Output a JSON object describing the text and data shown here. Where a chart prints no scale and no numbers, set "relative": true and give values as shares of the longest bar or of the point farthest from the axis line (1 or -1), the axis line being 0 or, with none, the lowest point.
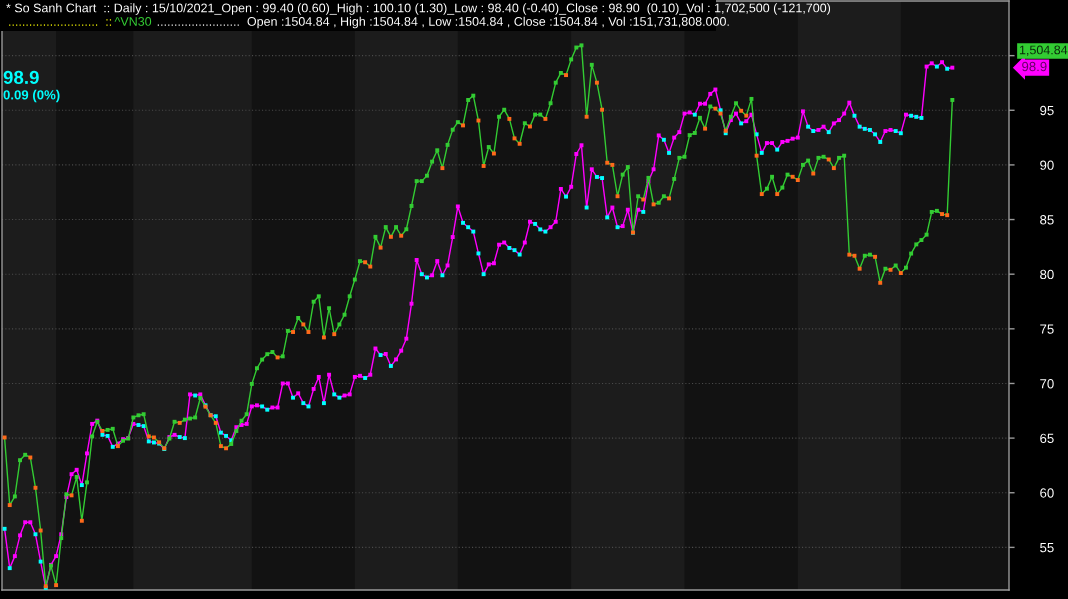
{
  "chart_data": [
    {
      "type": "line",
      "title": "* So Sanh Chart  :: Daily : 15/10/2021_Open : 99.40 (0.60)_High : 100.10 (1.30)_Low : 98.40 (-0.40)_Close : 98.90  (0.10)_Vol : 1,702,500 (-121,700)",
      "annotations": [
        "98.9",
        "0.09 (0%)",
        "98.9"
      ],
      "categories": [
        null,
        null,
        null,
        null,
        null,
        null,
        null,
        null,
        null,
        null,
        null,
        null,
        null,
        null,
        null,
        null,
        null,
        null,
        null,
        null,
        null,
        null,
        null,
        null,
        null,
        null,
        null,
        null,
        null,
        null,
        null,
        null,
        null,
        null,
        null,
        null,
        null,
        null,
        null,
        null,
        null,
        null,
        null,
        null,
        null,
        null,
        null,
        null,
        null,
        null,
        null,
        null,
        null,
        null,
        null,
        null,
        null,
        null,
        null,
        null,
        null,
        null,
        null,
        null,
        null,
        null,
        null,
        null,
        null,
        null,
        null,
        null,
        null,
        null,
        null,
        null,
        null,
        null,
        null,
        null,
        null,
        null,
        null,
        null,
        null,
        null,
        null,
        null,
        null,
        null,
        null,
        null,
        null,
        null,
        null,
        null,
        null,
        null,
        null,
        null,
        null,
        null,
        null,
        null,
        null,
        null,
        null,
        null,
        null,
        null,
        null,
        null,
        null,
        null,
        null,
        null,
        null,
        null,
        null,
        null,
        null,
        null,
        null,
        null,
        null,
        null,
        null,
        null,
        null,
        null,
        null,
        null,
        null,
        null,
        null,
        null,
        null,
        null,
        null,
        null,
        null,
        null,
        null,
        null,
        null,
        null,
        null,
        null,
        null,
        null,
        null,
        null,
        null,
        null,
        null,
        null,
        null,
        null,
        null,
        null,
        null,
        null,
        null,
        null,
        null,
        null,
        null,
        null,
        null,
        null,
        null,
        null,
        null,
        null,
        null,
        null,
        null,
        null,
        null,
        null,
        null,
        null,
        null,
        null,
        null
      ],
      "series": [
        {
          "color": "#ff00ff",
          "values": [
            56.7,
            53.1,
            54.2,
            56.1,
            57.3,
            57.3,
            56.2,
            53.7,
            51.3,
            53.4,
            54.2,
            56.2,
            59.6,
            61.7,
            62.1,
            60.7,
            63.6,
            66.3,
            66.6,
            65.3,
            65.2,
            64.2,
            64.5,
            64.9,
            65.0,
            66.3,
            66.2,
            66.1,
            64.7,
            64.6,
            64.5,
            64.0,
            65.1,
            65.3,
            65.1,
            65.0,
            69.0,
            68.9,
            69.0,
            68.0,
            67.1,
            67.0,
            65.5,
            65.2,
            64.8,
            66.0,
            66.2,
            66.3,
            67.9,
            68.0,
            67.9,
            67.6,
            67.8,
            67.8,
            70.0,
            70.0,
            68.7,
            69.1,
            68.2,
            67.9,
            69.5,
            70.6,
            68.2,
            70.8,
            69.0,
            68.7,
            68.9,
            69.0,
            70.6,
            70.7,
            70.5,
            70.8,
            73.2,
            72.6,
            72.7,
            71.6,
            72.2,
            73.0,
            74.1,
            77.3,
            81.3,
            80.0,
            79.7,
            79.9,
            81.2,
            79.9,
            80.8,
            83.4,
            86.2,
            84.7,
            84.3,
            83.9,
            81.9,
            80.0,
            80.9,
            81.0,
            82.7,
            82.9,
            82.4,
            82.2,
            81.8,
            82.9,
            84.8,
            84.6,
            84.1,
            83.9,
            84.3,
            84.8,
            87.8,
            87.1,
            88.0,
            91.0,
            91.8,
            86.1,
            89.6,
            88.9,
            88.8,
            85.2,
            86.1,
            84.3,
            84.4,
            85.9,
            83.8,
            85.9,
            85.7,
            88.5,
            89.6,
            92.7,
            92.3,
            91.1,
            92.5,
            93.0,
            94.7,
            94.8,
            94.6,
            95.6,
            95.6,
            96.5,
            96.9,
            95.0,
            92.9,
            94.1,
            94.7,
            93.8,
            94.0,
            94.6,
            92.8,
            91.1,
            92.0,
            92.0,
            91.4,
            92.1,
            92.2,
            92.4,
            92.5,
            94.9,
            93.5,
            93.1,
            93.2,
            93.5,
            93.0,
            93.8,
            94.1,
            94.7,
            95.7,
            94.5,
            93.5,
            93.3,
            93.2,
            92.8,
            92.1,
            93.1,
            93.2,
            93.1,
            92.9,
            94.6,
            94.5,
            94.4,
            94.3,
            99.0,
            99.3,
            99.0,
            99.4,
            98.8,
            98.9
          ],
          "colors": [
            "#00ffff",
            "#00ffff",
            "#ff00ff",
            "#ff00ff",
            "#ff00ff",
            "#ff00ff",
            "#00ffff",
            "#00ffff",
            "#00ffff",
            "#ff00ff",
            "#ff00ff",
            "#ff00ff",
            "#ff00ff",
            "#ff00ff",
            "#ff00ff",
            "#00ffff",
            "#ff00ff",
            "#ff00ff",
            "#ff00ff",
            "#00ffff",
            "#00ffff",
            "#00ffff",
            "#ff00ff",
            "#ff00ff",
            "#ff00ff",
            "#ff00ff",
            "#00ffff",
            "#00ffff",
            "#00ffff",
            "#00ffff",
            "#00ffff",
            "#00ffff",
            "#ff00ff",
            "#ff00ff",
            "#00ffff",
            "#00ffff",
            "#ff00ff",
            "#00ffff",
            "#ff00ff",
            "#00ffff",
            "#00ffff",
            "#00ffff",
            "#00ffff",
            "#00ffff",
            "#00ffff",
            "#ff00ff",
            "#ff00ff",
            "#ff00ff",
            "#ff00ff",
            "#ff00ff",
            "#00ffff",
            "#00ffff",
            "#ff00ff",
            "#ff00ff",
            "#ff00ff",
            "#ff00ff",
            "#00ffff",
            "#ff00ff",
            "#00ffff",
            "#00ffff",
            "#ff00ff",
            "#ff00ff",
            "#00ffff",
            "#ff00ff",
            "#00ffff",
            "#00ffff",
            "#ff00ff",
            "#ff00ff",
            "#ff00ff",
            "#ff00ff",
            "#00ffff",
            "#ff00ff",
            "#ff00ff",
            "#00ffff",
            "#ff00ff",
            "#00ffff",
            "#ff00ff",
            "#ff00ff",
            "#ff00ff",
            "#ff00ff",
            "#ff00ff",
            "#00ffff",
            "#00ffff",
            "#ff00ff",
            "#ff00ff",
            "#00ffff",
            "#ff00ff",
            "#ff00ff",
            "#ff00ff",
            "#00ffff",
            "#00ffff",
            "#00ffff",
            "#00ffff",
            "#00ffff",
            "#ff00ff",
            "#ff00ff",
            "#ff00ff",
            "#ff00ff",
            "#00ffff",
            "#00ffff",
            "#00ffff",
            "#ff00ff",
            "#ff00ff",
            "#00ffff",
            "#00ffff",
            "#00ffff",
            "#ff00ff",
            "#ff00ff",
            "#ff00ff",
            "#00ffff",
            "#ff00ff",
            "#ff00ff",
            "#ff00ff",
            "#00ffff",
            "#ff00ff",
            "#00ffff",
            "#00ffff",
            "#00ffff",
            "#ff00ff",
            "#00ffff",
            "#ff00ff",
            "#ff00ff",
            "#00ffff",
            "#ff00ff",
            "#00ffff",
            "#ff00ff",
            "#ff00ff",
            "#ff00ff",
            "#00ffff",
            "#00ffff",
            "#ff00ff",
            "#ff00ff",
            "#ff00ff",
            "#ff00ff",
            "#00ffff",
            "#ff00ff",
            "#ff00ff",
            "#ff00ff",
            "#ff00ff",
            "#00ffff",
            "#00ffff",
            "#ff00ff",
            "#ff00ff",
            "#00ffff",
            "#ff00ff",
            "#ff00ff",
            "#00ffff",
            "#00ffff",
            "#ff00ff",
            "#ff00ff",
            "#00ffff",
            "#ff00ff",
            "#ff00ff",
            "#ff00ff",
            "#ff00ff",
            "#ff00ff",
            "#00ffff",
            "#00ffff",
            "#ff00ff",
            "#ff00ff",
            "#00ffff",
            "#ff00ff",
            "#ff00ff",
            "#ff00ff",
            "#ff00ff",
            "#00ffff",
            "#00ffff",
            "#00ffff",
            "#00ffff",
            "#00ffff",
            "#00ffff",
            "#ff00ff",
            "#ff00ff",
            "#00ffff",
            "#00ffff",
            "#ff00ff",
            "#00ffff",
            "#00ffff",
            "#00ffff",
            "#ff00ff",
            "#ff00ff",
            "#00ffff",
            "#ff00ff",
            "#00ffff",
            "#ff00ff"
          ]
        }
      ],
      "ylim": [
        51.1,
        105.0
      ],
      "yticks": [
        55,
        60,
        65,
        70,
        75,
        80,
        85,
        90,
        95,
        {
          "value": 100,
          "label": null
        }
      ],
      "tick_labels": "y",
      "grid": "y",
      "marker": "square"
    },
    {
      "type": "line",
      "relative": true,
      "subtitle": "........................  Open :1504.84 , High :1504.84 , Low :1504.84 , Close :1504.84 , Vol :151,731,808.000.",
      "annotations": [
        "..........................  ::",
        "1,504.84"
      ],
      "categories": [
        null,
        null,
        null,
        null,
        null,
        null,
        null,
        null,
        null,
        null,
        null,
        null,
        null,
        null,
        null,
        null,
        null,
        null,
        null,
        null,
        null,
        null,
        null,
        null,
        null,
        null,
        null,
        null,
        null,
        null,
        null,
        null,
        null,
        null,
        null,
        null,
        null,
        null,
        null,
        null,
        null,
        null,
        null,
        null,
        null,
        null,
        null,
        null,
        null,
        null,
        null,
        null,
        null,
        null,
        null,
        null,
        null,
        null,
        null,
        null,
        null,
        null,
        null,
        null,
        null,
        null,
        null,
        null,
        null,
        null,
        null,
        null,
        null,
        null,
        null,
        null,
        null,
        null,
        null,
        null,
        null,
        null,
        null,
        null,
        null,
        null,
        null,
        null,
        null,
        null,
        null,
        null,
        null,
        null,
        null,
        null,
        null,
        null,
        null,
        null,
        null,
        null,
        null,
        null,
        null,
        null,
        null,
        null,
        null,
        null,
        null,
        null,
        null,
        null,
        null,
        null,
        null,
        null,
        null,
        null,
        null,
        null,
        null,
        null,
        null,
        null,
        null,
        null,
        null,
        null,
        null,
        null,
        null,
        null,
        null,
        null,
        null,
        null,
        null,
        null,
        null,
        null,
        null,
        null,
        null,
        null,
        null,
        null,
        null,
        null,
        null,
        null,
        null,
        null,
        null,
        null,
        null,
        null,
        null,
        null,
        null,
        null,
        null,
        null,
        null,
        null,
        null,
        null,
        null,
        null,
        null,
        null,
        null,
        null,
        null,
        null,
        null,
        null,
        null,
        null,
        null,
        null,
        null,
        null,
        null
      ],
      "series": [
        {
          "name": "^VN30",
          "color": "#33cc33",
          "values": [
            0.275,
            0.15,
            0.166,
            0.233,
            0.243,
            0.238,
            0.182,
            0.103,
            0,
            0.038,
            0.002,
            0.089,
            0.17,
            0.168,
            0.202,
            0.121,
            0.192,
            0.277,
            0.304,
            0.287,
            0.289,
            0.291,
            0.259,
            0.269,
            0.273,
            0.312,
            0.316,
            0.318,
            0.277,
            0.275,
            0.266,
            0.255,
            0.273,
            0.304,
            0.302,
            0.308,
            0.31,
            0.312,
            0.348,
            0.332,
            0.316,
            0.302,
            0.259,
            0.255,
            0.263,
            0.287,
            0.306,
            0.318,
            0.374,
            0.403,
            0.419,
            0.429,
            0.433,
            0.423,
            0.425,
            0.472,
            0.47,
            0.496,
            0.484,
            0.47,
            0.526,
            0.536,
            0.46,
            0.514,
            0.466,
            0.484,
            0.502,
            0.536,
            0.567,
            0.601,
            0.599,
            0.591,
            0.646,
            0.626,
            0.664,
            0.646,
            0.664,
            0.648,
            0.66,
            0.703,
            0.749,
            0.749,
            0.759,
            0.785,
            0.806,
            0.773,
            0.816,
            0.844,
            0.858,
            0.852,
            0.899,
            0.907,
            0.861,
            0.777,
            0.812,
            0.8,
            0.868,
            0.881,
            0.864,
            0.828,
            0.818,
            0.856,
            0.85,
            0.872,
            0.872,
            0.864,
            0.893,
            0.931,
            0.949,
            0.945,
            0.974,
            0.996,
            1,
            0.868,
            0.964,
            0.931,
            0.881,
            0.783,
            0.779,
            0.721,
            0.761,
            0.775,
            0.654,
            0.721,
            0.715,
            0.755,
            0.706,
            0.709,
            0.721,
            0.717,
            0.753,
            0.792,
            0.794,
            0.834,
            0.838,
            0.866,
            0.846,
            0.887,
            0.883,
            0.874,
            0.842,
            0.868,
            0.893,
            0.879,
            0.87,
            0.901,
            0.796,
            0.725,
            0.735,
            0.757,
            0.725,
            0.737,
            0.761,
            0.757,
            0.751,
            0.779,
            0.787,
            0.763,
            0.792,
            0.794,
            0.789,
            0.773,
            0.792,
            0.796,
            0.613,
            0.611,
            0.587,
            0.611,
            0.613,
            0.609,
            0.561,
            0.587,
            0.585,
            0.593,
            0.579,
            0.589,
            0.615,
            0.632,
            0.64,
            0.65,
            0.692,
            0.694,
            0.688,
            0.686,
            0.899
          ],
          "colors": [
            "#ff6a1a",
            "#ff6a1a",
            "#33cc33",
            "#33cc33",
            "#33cc33",
            "#ff6a1a",
            "#ff6a1a",
            "#ff6a1a",
            "#ff6a1a",
            "#33cc33",
            "#ff6a1a",
            "#33cc33",
            "#33cc33",
            "#ff6a1a",
            "#33cc33",
            "#ff6a1a",
            "#33cc33",
            "#33cc33",
            "#33cc33",
            "#ff6a1a",
            "#33cc33",
            "#33cc33",
            "#ff6a1a",
            "#33cc33",
            "#33cc33",
            "#33cc33",
            "#33cc33",
            "#33cc33",
            "#ff6a1a",
            "#ff6a1a",
            "#ff6a1a",
            "#ff6a1a",
            "#33cc33",
            "#33cc33",
            "#ff6a1a",
            "#33cc33",
            "#33cc33",
            "#33cc33",
            "#33cc33",
            "#ff6a1a",
            "#ff6a1a",
            "#ff6a1a",
            "#ff6a1a",
            "#ff6a1a",
            "#33cc33",
            "#33cc33",
            "#33cc33",
            "#33cc33",
            "#33cc33",
            "#33cc33",
            "#33cc33",
            "#33cc33",
            "#33cc33",
            "#ff6a1a",
            "#33cc33",
            "#33cc33",
            "#ff6a1a",
            "#33cc33",
            "#ff6a1a",
            "#ff6a1a",
            "#33cc33",
            "#33cc33",
            "#ff6a1a",
            "#33cc33",
            "#ff6a1a",
            "#33cc33",
            "#33cc33",
            "#33cc33",
            "#33cc33",
            "#33cc33",
            "#ff6a1a",
            "#ff6a1a",
            "#33cc33",
            "#ff6a1a",
            "#33cc33",
            "#ff6a1a",
            "#33cc33",
            "#ff6a1a",
            "#33cc33",
            "#33cc33",
            "#33cc33",
            "#33cc33",
            "#33cc33",
            "#33cc33",
            "#33cc33",
            "#ff6a1a",
            "#33cc33",
            "#33cc33",
            "#33cc33",
            "#ff6a1a",
            "#33cc33",
            "#33cc33",
            "#ff6a1a",
            "#ff6a1a",
            "#33cc33",
            "#ff6a1a",
            "#33cc33",
            "#33cc33",
            "#ff6a1a",
            "#ff6a1a",
            "#ff6a1a",
            "#33cc33",
            "#ff6a1a",
            "#33cc33",
            "#33cc33",
            "#ff6a1a",
            "#33cc33",
            "#33cc33",
            "#33cc33",
            "#ff6a1a",
            "#33cc33",
            "#33cc33",
            "#33cc33",
            "#ff6a1a",
            "#33cc33",
            "#ff6a1a",
            "#ff6a1a",
            "#ff6a1a",
            "#ff6a1a",
            "#ff6a1a",
            "#33cc33",
            "#33cc33",
            "#ff6a1a",
            "#33cc33",
            "#ff6a1a",
            "#33cc33",
            "#ff6a1a",
            "#33cc33",
            "#33cc33",
            "#ff6a1a",
            "#33cc33",
            "#33cc33",
            "#33cc33",
            "#33cc33",
            "#33cc33",
            "#33cc33",
            "#ff6a1a",
            "#33cc33",
            "#ff6a1a",
            "#ff6a1a",
            "#ff6a1a",
            "#33cc33",
            "#33cc33",
            "#ff6a1a",
            "#ff6a1a",
            "#33cc33",
            "#ff6a1a",
            "#ff6a1a",
            "#33cc33",
            "#33cc33",
            "#ff6a1a",
            "#33cc33",
            "#33cc33",
            "#ff6a1a",
            "#ff6a1a",
            "#33cc33",
            "#33cc33",
            "#ff6a1a",
            "#33cc33",
            "#33cc33",
            "#ff6a1a",
            "#ff6a1a",
            "#33cc33",
            "#33cc33",
            "#ff6a1a",
            "#ff6a1a",
            "#ff6a1a",
            "#33cc33",
            "#33cc33",
            "#ff6a1a",
            "#ff6a1a",
            "#33cc33",
            "#ff6a1a",
            "#33cc33",
            "#ff6a1a",
            "#33cc33",
            "#33cc33",
            "#33cc33",
            "#33cc33",
            "#33cc33",
            "#33cc33",
            "#33cc33",
            "#ff6a1a",
            "#ff6a1a",
            "#33cc33"
          ]
        }
      ],
      "tick_labels": false,
      "marker": "square"
    }
  ]
}
